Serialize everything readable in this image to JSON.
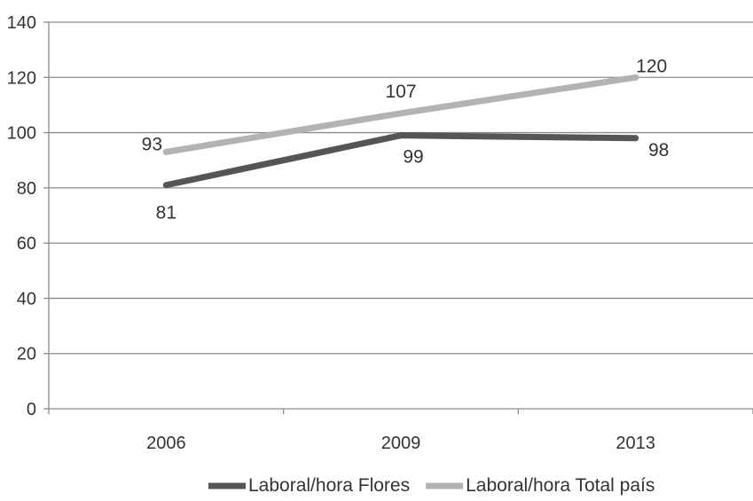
{
  "chart_data": {
    "type": "line",
    "title": "",
    "xlabel": "",
    "ylabel": "",
    "categories": [
      "2006",
      "2009",
      "2013"
    ],
    "ylim": [
      0,
      140
    ],
    "yticks": [
      0,
      20,
      40,
      60,
      80,
      100,
      120,
      140
    ],
    "grid": true,
    "legend_position": "bottom",
    "series": [
      {
        "name": "Laboral/hora Flores",
        "values": [
          81,
          99,
          98
        ],
        "labels": [
          "81",
          "99",
          "98"
        ],
        "color": "#555555"
      },
      {
        "name": "Laboral/hora Total país",
        "values": [
          93,
          107,
          120
        ],
        "labels": [
          "93",
          "107",
          "120"
        ],
        "color": "#b3b3b3"
      }
    ]
  }
}
